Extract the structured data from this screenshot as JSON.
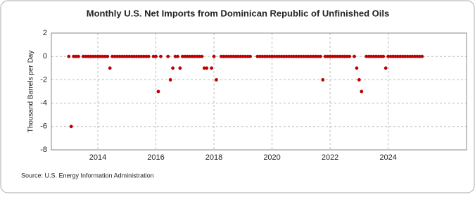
{
  "chart_data": {
    "type": "scatter",
    "title": "Monthly U.S. Net Imports from Dominican Republic of Unfinished Oils",
    "y_label": "Thousand Barrels per Day",
    "source": "Source: U.S. Energy Information Administration",
    "color": "#c00000",
    "grid": true,
    "xlim": [
      2012.4,
      2026.7
    ],
    "xticks": [
      2014,
      2016,
      2018,
      2020,
      2022,
      2024
    ],
    "ylim": [
      -8,
      2
    ],
    "yticks": [
      2,
      0,
      -2,
      -4,
      -6,
      -8
    ],
    "x": [
      2013,
      2013.083,
      2013.167,
      2013.25,
      2013.333,
      2013.417,
      2013.5,
      2013.583,
      2013.667,
      2013.75,
      2013.833,
      2013.917,
      2014,
      2014.083,
      2014.167,
      2014.25,
      2014.333,
      2014.417,
      2014.5,
      2014.583,
      2014.667,
      2014.75,
      2014.833,
      2014.917,
      2015,
      2015.083,
      2015.167,
      2015.25,
      2015.333,
      2015.417,
      2015.5,
      2015.583,
      2015.667,
      2015.75,
      2015.833,
      2015.917,
      2016,
      2016.083,
      2016.167,
      2016.25,
      2016.333,
      2016.417,
      2016.5,
      2016.583,
      2016.667,
      2016.75,
      2016.833,
      2016.917,
      2017,
      2017.083,
      2017.167,
      2017.25,
      2017.333,
      2017.417,
      2017.5,
      2017.583,
      2017.667,
      2017.75,
      2017.833,
      2017.917,
      2018,
      2018.083,
      2018.167,
      2018.25,
      2018.333,
      2018.417,
      2018.5,
      2018.583,
      2018.667,
      2018.75,
      2018.833,
      2018.917,
      2019,
      2019.083,
      2019.167,
      2019.25,
      2019.333,
      2019.417,
      2019.5,
      2019.583,
      2019.667,
      2019.75,
      2019.833,
      2019.917,
      2020,
      2020.083,
      2020.167,
      2020.25,
      2020.333,
      2020.417,
      2020.5,
      2020.583,
      2020.667,
      2020.75,
      2020.833,
      2020.917,
      2021,
      2021.083,
      2021.167,
      2021.25,
      2021.333,
      2021.417,
      2021.5,
      2021.583,
      2021.667,
      2021.75,
      2021.833,
      2021.917,
      2022,
      2022.083,
      2022.167,
      2022.25,
      2022.333,
      2022.417,
      2022.5,
      2022.583,
      2022.667,
      2022.75,
      2022.833,
      2022.917,
      2023,
      2023.083,
      2023.167,
      2023.25,
      2023.333,
      2023.417,
      2023.5,
      2023.583,
      2023.667,
      2023.75,
      2023.833,
      2023.917,
      2024,
      2024.083,
      2024.167,
      2024.25,
      2024.333,
      2024.417,
      2024.5,
      2024.583,
      2024.667,
      2024.75,
      2024.833,
      2024.917,
      2025,
      2025.083,
      2025.167
    ],
    "values": [
      0,
      -6,
      0,
      0,
      0,
      null,
      0,
      0,
      0,
      0,
      0,
      0,
      0,
      0,
      0,
      0,
      0,
      -1,
      0,
      0,
      0,
      0,
      0,
      0,
      0,
      0,
      0,
      0,
      0,
      0,
      0,
      0,
      0,
      0,
      null,
      0,
      0,
      -3,
      0,
      null,
      null,
      0,
      -2,
      -1,
      0,
      0,
      -1,
      0,
      0,
      0,
      0,
      0,
      0,
      0,
      0,
      0,
      -1,
      -1,
      null,
      -1,
      0,
      -2,
      null,
      0,
      0,
      0,
      0,
      0,
      0,
      0,
      0,
      0,
      0,
      0,
      0,
      0,
      null,
      null,
      0,
      0,
      0,
      0,
      0,
      0,
      0,
      0,
      0,
      0,
      0,
      0,
      0,
      0,
      0,
      0,
      0,
      0,
      0,
      0,
      0,
      0,
      0,
      0,
      0,
      0,
      0,
      -2,
      0,
      0,
      0,
      0,
      0,
      0,
      0,
      0,
      0,
      0,
      0,
      null,
      0,
      -1,
      -2,
      -3,
      null,
      0,
      0,
      0,
      0,
      0,
      0,
      0,
      0,
      -1,
      0,
      0,
      0,
      0,
      0,
      0,
      0,
      0,
      0,
      0,
      0,
      0,
      0,
      0,
      0
    ]
  }
}
